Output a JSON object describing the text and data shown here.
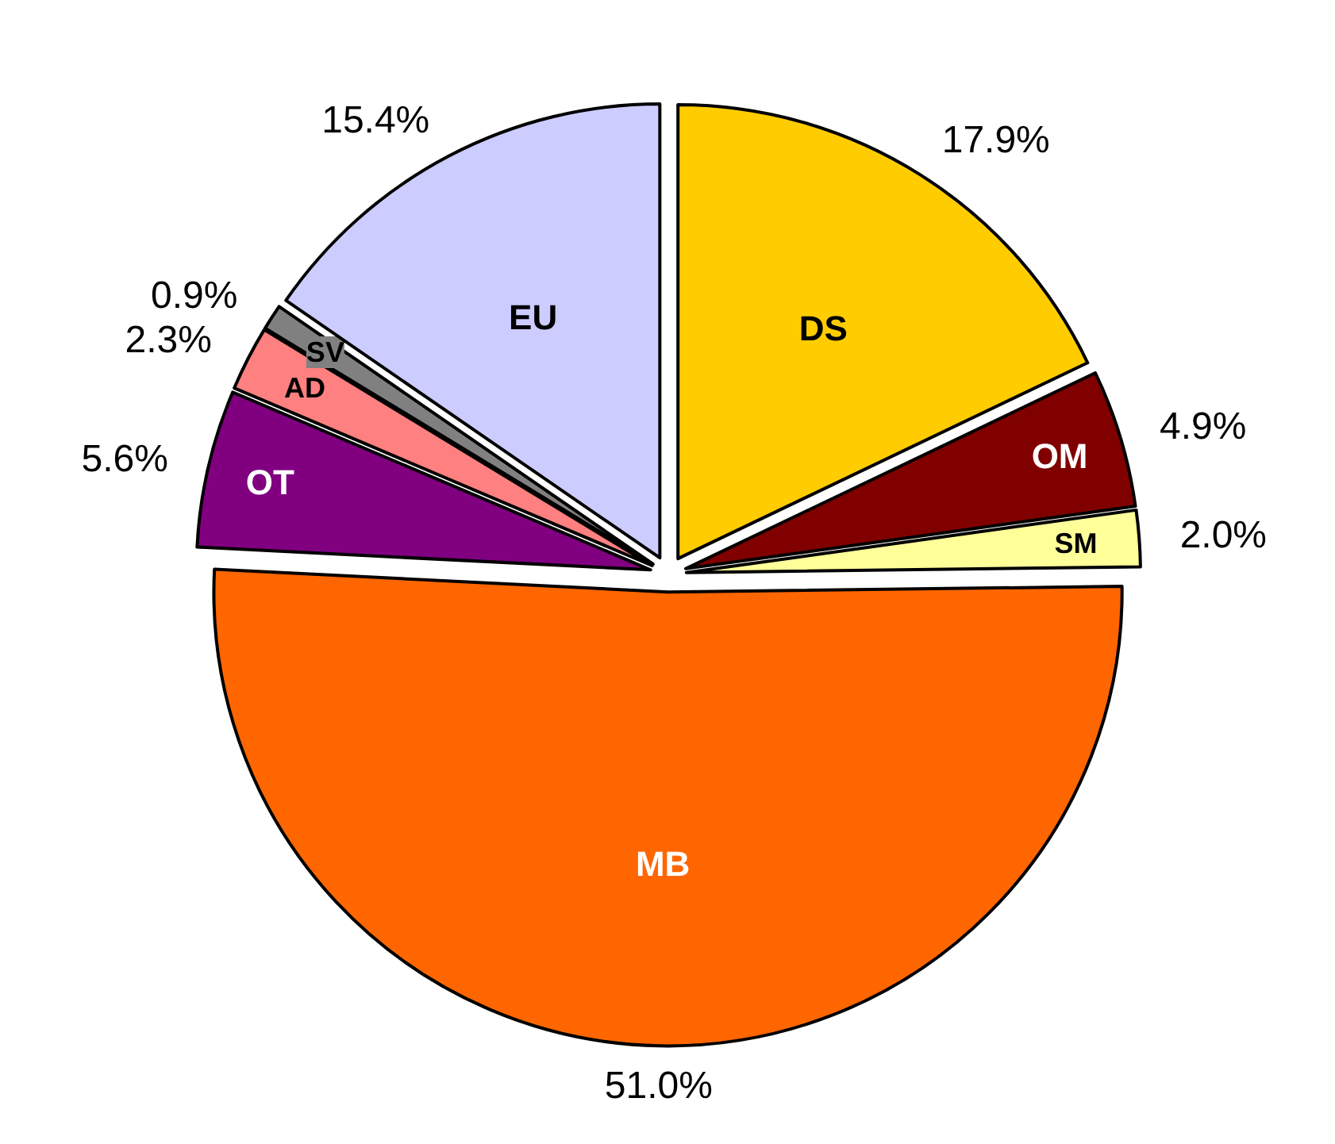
{
  "chart_data": {
    "type": "pie",
    "categories": [
      "DS",
      "OM",
      "SM",
      "MB",
      "OT",
      "AD",
      "SV",
      "EU"
    ],
    "values": [
      17.9,
      4.9,
      2.0,
      51.0,
      5.6,
      2.3,
      0.9,
      15.4
    ],
    "colors": [
      "#ffcc00",
      "#800000",
      "#ffff99",
      "#ff6600",
      "#800080",
      "#ff8080",
      "#808080",
      "#ccccff"
    ],
    "value_labels": [
      "17.9%",
      "4.9%",
      "2.0%",
      "51.0%",
      "5.6%",
      "2.3%",
      "0.9%",
      "15.4%"
    ]
  }
}
